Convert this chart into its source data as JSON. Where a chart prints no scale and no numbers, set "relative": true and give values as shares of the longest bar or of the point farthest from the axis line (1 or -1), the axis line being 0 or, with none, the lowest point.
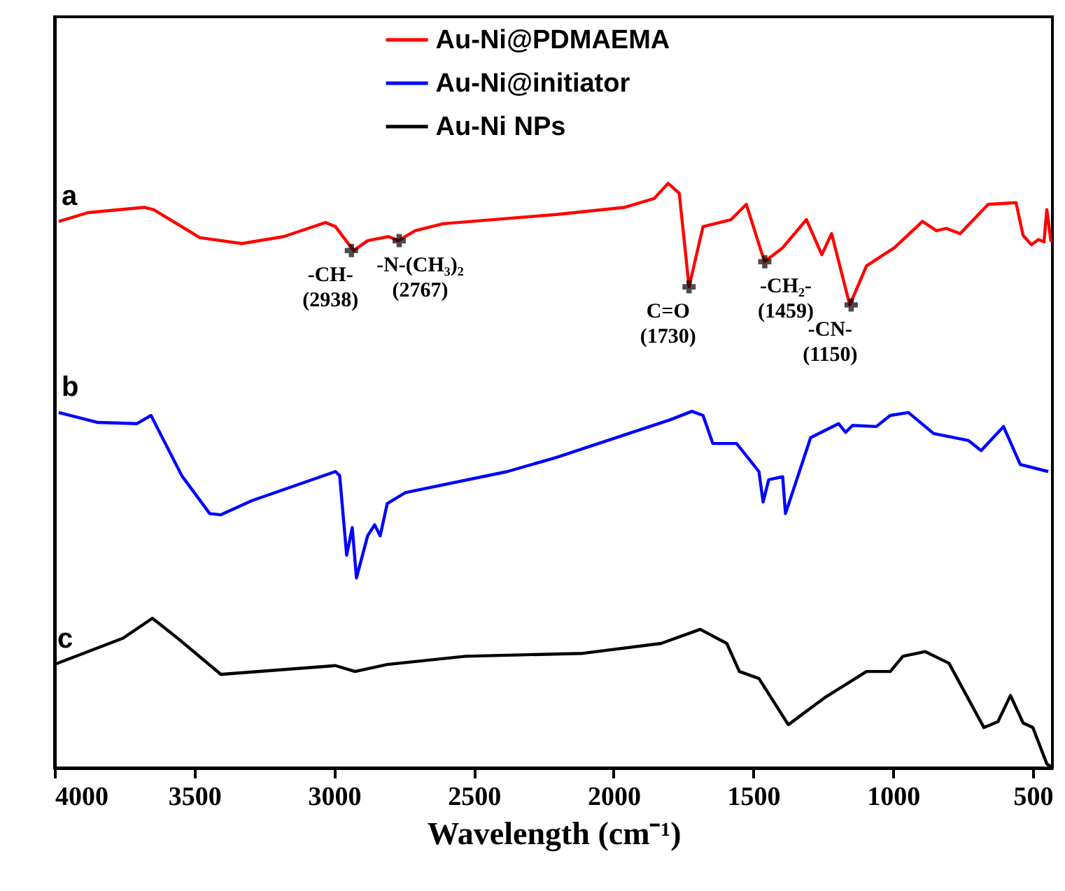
{
  "chart_data": {
    "type": "line",
    "relative": true,
    "xlabel": "Wavelength (cm⁻¹)",
    "xlim": [
      4000,
      430
    ],
    "xticks": [
      4000,
      3500,
      3000,
      2500,
      2000,
      1500,
      1000,
      500
    ],
    "legend": "top",
    "grid": false,
    "tick_labels": "x",
    "series": [
      {
        "name": "Au-Ni@PDMAEMA",
        "color": "#ff0000",
        "x": [
          3985,
          3880,
          3680,
          3645,
          3480,
          3330,
          3180,
          3030,
          2995,
          2930,
          2880,
          2805,
          2770,
          2710,
          2610,
          2380,
          2200,
          1960,
          1855,
          1805,
          1765,
          1730,
          1680,
          1580,
          1525,
          1460,
          1395,
          1310,
          1255,
          1220,
          1155,
          1095,
          995,
          895,
          845,
          810,
          760,
          660,
          560,
          535,
          505,
          480,
          460,
          450,
          435
        ],
        "values": [
          0.935,
          0.95,
          0.959,
          0.955,
          0.907,
          0.897,
          0.909,
          0.933,
          0.926,
          0.885,
          0.902,
          0.909,
          0.902,
          0.919,
          0.931,
          0.94,
          0.947,
          0.959,
          0.974,
          1.0,
          0.983,
          0.823,
          0.926,
          0.938,
          0.964,
          0.866,
          0.89,
          0.938,
          0.878,
          0.914,
          0.792,
          0.859,
          0.89,
          0.935,
          0.919,
          0.923,
          0.914,
          0.964,
          0.967,
          0.911,
          0.895,
          0.904,
          0.9,
          0.955,
          0.9
        ]
      },
      {
        "name": "Au-Ni@initiator",
        "color": "#0000ff",
        "x": [
          3985,
          3845,
          3705,
          3655,
          3545,
          3445,
          3405,
          3295,
          2995,
          2980,
          2955,
          2935,
          2920,
          2880,
          2855,
          2835,
          2810,
          2745,
          2380,
          2205,
          1795,
          1720,
          1680,
          1645,
          1560,
          1480,
          1465,
          1445,
          1395,
          1385,
          1295,
          1195,
          1170,
          1145,
          1060,
          1010,
          945,
          855,
          730,
          685,
          605,
          545,
          445
        ],
        "values": [
          0.608,
          0.591,
          0.589,
          0.603,
          0.5,
          0.435,
          0.433,
          0.457,
          0.507,
          0.5,
          0.364,
          0.411,
          0.325,
          0.397,
          0.416,
          0.397,
          0.452,
          0.471,
          0.507,
          0.531,
          0.596,
          0.61,
          0.603,
          0.555,
          0.555,
          0.507,
          0.455,
          0.493,
          0.498,
          0.435,
          0.565,
          0.589,
          0.574,
          0.586,
          0.584,
          0.603,
          0.608,
          0.572,
          0.56,
          0.543,
          0.584,
          0.519,
          0.507
        ]
      },
      {
        "name": "Au-Ni NPs",
        "color": "#000000",
        "x": [
          4000,
          3755,
          3650,
          3555,
          3405,
          2995,
          2925,
          2810,
          2530,
          2110,
          1830,
          1690,
          1595,
          1550,
          1480,
          1375,
          1245,
          1095,
          1010,
          965,
          885,
          800,
          675,
          625,
          580,
          535,
          500,
          450,
          435
        ],
        "values": [
          0.177,
          0.222,
          0.256,
          0.22,
          0.16,
          0.175,
          0.165,
          0.177,
          0.191,
          0.196,
          0.213,
          0.237,
          0.213,
          0.165,
          0.153,
          0.074,
          0.12,
          0.165,
          0.165,
          0.191,
          0.199,
          0.179,
          0.069,
          0.079,
          0.124,
          0.077,
          0.069,
          0.007,
          0.002
        ]
      }
    ],
    "annotations": [
      "a",
      "b",
      "c",
      {
        "text": "-CH-\n(2938)",
        "x": 2938,
        "y": 0.885
      },
      {
        "text": "-N-(CH₃)₂\n(2767)",
        "x": 2767,
        "y": 0.902
      },
      {
        "text": "C=O\n(1730)",
        "x": 1730,
        "y": 0.823
      },
      {
        "text": "-CH₂-\n(1459)",
        "x": 1459,
        "y": 0.866
      },
      {
        "text": "-CN-\n(1150)",
        "x": 1150,
        "y": 0.792
      }
    ]
  }
}
